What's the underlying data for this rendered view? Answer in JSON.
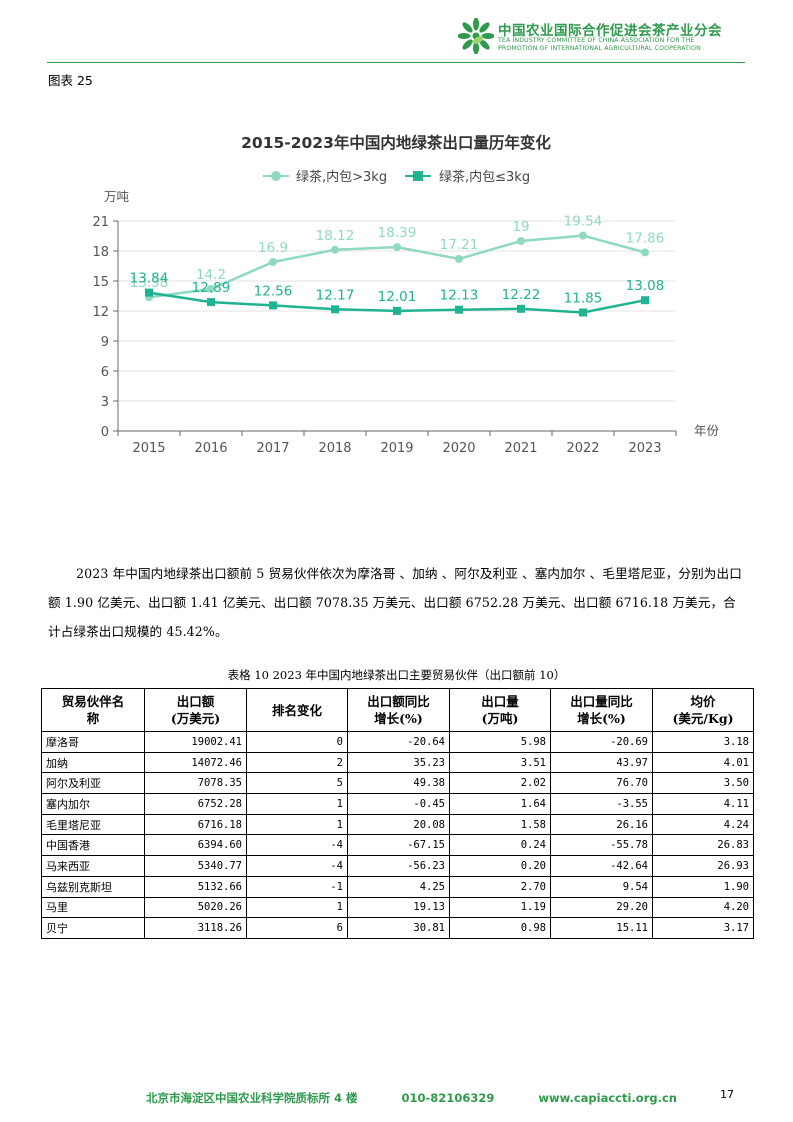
{
  "header": {
    "org_name_cn": "中国农业国际合作促进会茶产业分会",
    "org_name_en_line1": "TEA INDUSTRY COMMITTEE OF CHINA ASSOCIATION FOR THE",
    "org_name_en_line2": "PROMOTION OF INTERNATIONAL AGRICULTURAL COOPERATION"
  },
  "figure_label": "图表 25",
  "chart_data": {
    "type": "line",
    "title": "2015-2023年中国内地绿茶出口量历年变化",
    "ylabel": "万吨",
    "xlabel": "年份",
    "legend_position": "top",
    "grid": true,
    "ylim": [
      0,
      21
    ],
    "yticks": [
      0,
      3,
      6,
      9,
      12,
      15,
      18,
      21
    ],
    "x": [
      "2015",
      "2016",
      "2017",
      "2018",
      "2019",
      "2020",
      "2021",
      "2022",
      "2023"
    ],
    "series": [
      {
        "name": "绿茶,内包>3kg",
        "color": "#8fd9c1",
        "marker": "circle",
        "values": [
          13.38,
          14.2,
          16.9,
          18.12,
          18.39,
          17.21,
          19,
          19.54,
          17.86
        ],
        "labels": [
          "13.38",
          "14.2",
          "16.9",
          "18.12",
          "18.39",
          "17.21",
          "19",
          "19.54",
          "17.86"
        ]
      },
      {
        "name": "绿茶,内包≤3kg",
        "color": "#20b392",
        "marker": "square",
        "values": [
          13.84,
          12.89,
          12.56,
          12.17,
          12.01,
          12.13,
          12.22,
          11.85,
          13.08
        ],
        "labels": [
          "13.84",
          "12.89",
          "12.56",
          "12.17",
          "12.01",
          "12.13",
          "12.22",
          "11.85",
          "13.08"
        ]
      }
    ]
  },
  "paragraph": "2023 年中国内地绿茶出口额前 5 贸易伙伴依次为摩洛哥 、加纳 、阿尔及利亚 、塞内加尔 、毛里塔尼亚，分别为出口额 1.90 亿美元、出口额 1.41 亿美元、出口额 7078.35 万美元、出口额 6752.28 万美元、出口额 6716.18 万美元，合计占绿茶出口规模的 45.42%。",
  "table": {
    "caption": "表格 10 2023 年中国内地绿茶出口主要贸易伙伴（出口额前 10）",
    "headers": [
      [
        "贸易伙伴名",
        "称"
      ],
      [
        "出口额",
        "(万美元)"
      ],
      [
        "排名变化",
        ""
      ],
      [
        "出口额同比",
        "增长(%)"
      ],
      [
        "出口量",
        "(万吨)"
      ],
      [
        "出口量同比",
        "增长(%)"
      ],
      [
        "均价",
        "(美元/Kg)"
      ]
    ],
    "rows": [
      [
        "摩洛哥",
        "19002.41",
        "0",
        "-20.64",
        "5.98",
        "-20.69",
        "3.18"
      ],
      [
        "加纳",
        "14072.46",
        "2",
        "35.23",
        "3.51",
        "43.97",
        "4.01"
      ],
      [
        "阿尔及利亚",
        "7078.35",
        "5",
        "49.38",
        "2.02",
        "76.70",
        "3.50"
      ],
      [
        "塞内加尔",
        "6752.28",
        "1",
        "-0.45",
        "1.64",
        "-3.55",
        "4.11"
      ],
      [
        "毛里塔尼亚",
        "6716.18",
        "1",
        "20.08",
        "1.58",
        "26.16",
        "4.24"
      ],
      [
        "中国香港",
        "6394.60",
        "-4",
        "-67.15",
        "0.24",
        "-55.78",
        "26.83"
      ],
      [
        "马来西亚",
        "5340.77",
        "-4",
        "-56.23",
        "0.20",
        "-42.64",
        "26.93"
      ],
      [
        "乌兹别克斯坦",
        "5132.66",
        "-1",
        "4.25",
        "2.70",
        "9.54",
        "1.90"
      ],
      [
        "马里",
        "5020.26",
        "1",
        "19.13",
        "1.19",
        "29.20",
        "4.20"
      ],
      [
        "贝宁",
        "3118.26",
        "6",
        "30.81",
        "0.98",
        "15.11",
        "3.17"
      ]
    ]
  },
  "footer": {
    "address": "北京市海淀区中国农业科学院质标所 4 楼",
    "phone": "010-82106329",
    "website": "www.capiaccti.org.cn"
  },
  "page_number": "17",
  "colors": {
    "brand_green": "#2f9a4b"
  }
}
